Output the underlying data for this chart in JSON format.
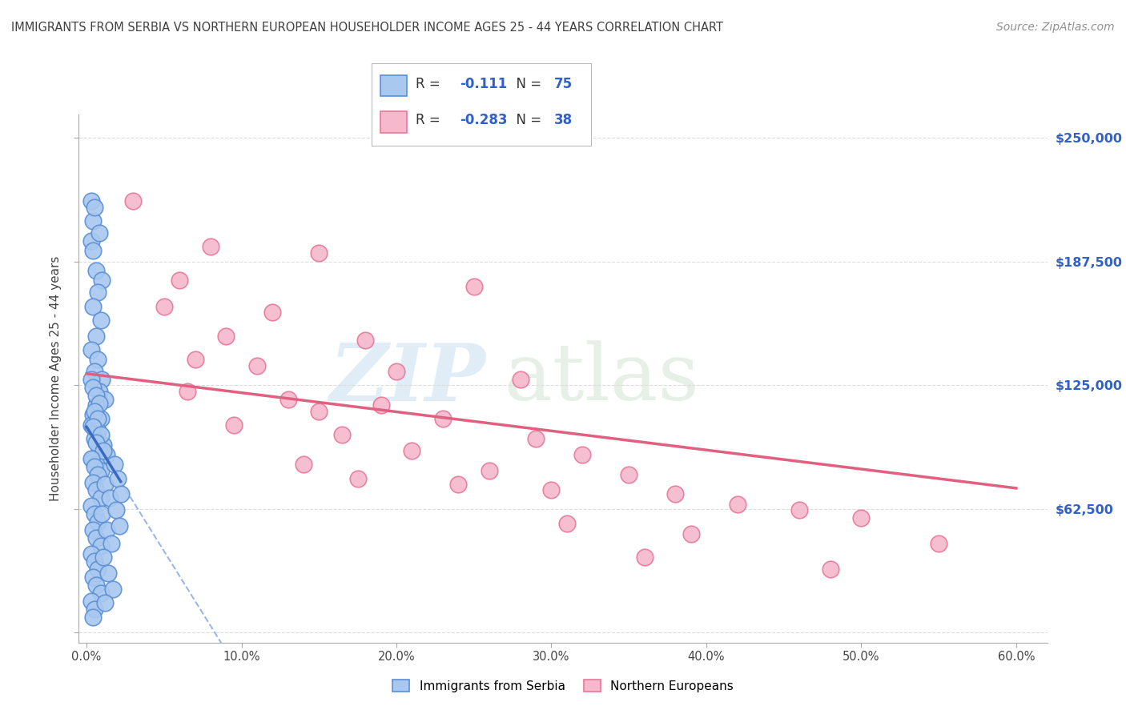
{
  "title": "IMMIGRANTS FROM SERBIA VS NORTHERN EUROPEAN HOUSEHOLDER INCOME AGES 25 - 44 YEARS CORRELATION CHART",
  "source": "Source: ZipAtlas.com",
  "ylabel": "Householder Income Ages 25 - 44 years",
  "serbia_R": -0.111,
  "serbia_N": 75,
  "northern_R": -0.283,
  "northern_N": 38,
  "serbia_color": "#a8c8f0",
  "northern_color": "#f5b8cc",
  "serbia_edge_color": "#5b8fd4",
  "northern_edge_color": "#e87898",
  "serbia_line_color": "#3a6abf",
  "northern_line_color": "#e06080",
  "dashed_line_color": "#99b8e8",
  "title_color": "#404040",
  "source_color": "#909090",
  "label_color": "#3060c8",
  "y_ticks": [
    0,
    62500,
    125000,
    187500,
    250000
  ],
  "y_tick_labels": [
    "",
    "$62,500",
    "$125,000",
    "$187,500",
    "$250,000"
  ],
  "x_ticks": [
    0.0,
    0.1,
    0.2,
    0.3,
    0.4,
    0.5,
    0.6
  ],
  "x_tick_labels": [
    "0.0%",
    "10.0%",
    "20.0%",
    "30.0%",
    "40.0%",
    "50.0%",
    "60.0%"
  ],
  "xlim": [
    -0.005,
    0.62
  ],
  "ylim": [
    -5000,
    262000
  ],
  "serbia_points": [
    [
      0.003,
      218000
    ],
    [
      0.004,
      208000
    ],
    [
      0.003,
      198000
    ],
    [
      0.005,
      215000
    ],
    [
      0.008,
      202000
    ],
    [
      0.004,
      193000
    ],
    [
      0.006,
      183000
    ],
    [
      0.01,
      178000
    ],
    [
      0.007,
      172000
    ],
    [
      0.004,
      165000
    ],
    [
      0.009,
      158000
    ],
    [
      0.006,
      150000
    ],
    [
      0.003,
      143000
    ],
    [
      0.007,
      138000
    ],
    [
      0.005,
      132000
    ],
    [
      0.01,
      128000
    ],
    [
      0.008,
      122000
    ],
    [
      0.012,
      118000
    ],
    [
      0.006,
      115000
    ],
    [
      0.004,
      110000
    ],
    [
      0.009,
      108000
    ],
    [
      0.003,
      105000
    ],
    [
      0.007,
      102000
    ],
    [
      0.005,
      98000
    ],
    [
      0.011,
      95000
    ],
    [
      0.008,
      92000
    ],
    [
      0.013,
      90000
    ],
    [
      0.004,
      88000
    ],
    [
      0.006,
      85000
    ],
    [
      0.009,
      82000
    ],
    [
      0.003,
      128000
    ],
    [
      0.004,
      124000
    ],
    [
      0.006,
      120000
    ],
    [
      0.008,
      116000
    ],
    [
      0.005,
      112000
    ],
    [
      0.007,
      108000
    ],
    [
      0.004,
      104000
    ],
    [
      0.009,
      100000
    ],
    [
      0.006,
      96000
    ],
    [
      0.011,
      92000
    ],
    [
      0.003,
      88000
    ],
    [
      0.005,
      84000
    ],
    [
      0.007,
      80000
    ],
    [
      0.004,
      76000
    ],
    [
      0.006,
      72000
    ],
    [
      0.009,
      68000
    ],
    [
      0.003,
      64000
    ],
    [
      0.005,
      60000
    ],
    [
      0.007,
      56000
    ],
    [
      0.004,
      52000
    ],
    [
      0.006,
      48000
    ],
    [
      0.009,
      44000
    ],
    [
      0.003,
      40000
    ],
    [
      0.005,
      36000
    ],
    [
      0.007,
      32000
    ],
    [
      0.004,
      28000
    ],
    [
      0.006,
      24000
    ],
    [
      0.009,
      20000
    ],
    [
      0.003,
      16000
    ],
    [
      0.005,
      12000
    ],
    [
      0.004,
      8000
    ],
    [
      0.012,
      75000
    ],
    [
      0.015,
      68000
    ],
    [
      0.01,
      60000
    ],
    [
      0.013,
      52000
    ],
    [
      0.016,
      45000
    ],
    [
      0.011,
      38000
    ],
    [
      0.014,
      30000
    ],
    [
      0.017,
      22000
    ],
    [
      0.012,
      15000
    ],
    [
      0.018,
      85000
    ],
    [
      0.02,
      78000
    ],
    [
      0.022,
      70000
    ],
    [
      0.019,
      62000
    ],
    [
      0.021,
      54000
    ]
  ],
  "northern_points": [
    [
      0.03,
      218000
    ],
    [
      0.08,
      195000
    ],
    [
      0.15,
      192000
    ],
    [
      0.06,
      178000
    ],
    [
      0.25,
      175000
    ],
    [
      0.05,
      165000
    ],
    [
      0.12,
      162000
    ],
    [
      0.09,
      150000
    ],
    [
      0.18,
      148000
    ],
    [
      0.07,
      138000
    ],
    [
      0.11,
      135000
    ],
    [
      0.2,
      132000
    ],
    [
      0.28,
      128000
    ],
    [
      0.065,
      122000
    ],
    [
      0.13,
      118000
    ],
    [
      0.19,
      115000
    ],
    [
      0.15,
      112000
    ],
    [
      0.23,
      108000
    ],
    [
      0.095,
      105000
    ],
    [
      0.165,
      100000
    ],
    [
      0.29,
      98000
    ],
    [
      0.21,
      92000
    ],
    [
      0.32,
      90000
    ],
    [
      0.14,
      85000
    ],
    [
      0.26,
      82000
    ],
    [
      0.35,
      80000
    ],
    [
      0.175,
      78000
    ],
    [
      0.24,
      75000
    ],
    [
      0.3,
      72000
    ],
    [
      0.38,
      70000
    ],
    [
      0.42,
      65000
    ],
    [
      0.46,
      62000
    ],
    [
      0.5,
      58000
    ],
    [
      0.31,
      55000
    ],
    [
      0.39,
      50000
    ],
    [
      0.55,
      45000
    ],
    [
      0.36,
      38000
    ],
    [
      0.48,
      32000
    ]
  ],
  "background_color": "#ffffff",
  "grid_color": "#dddddd"
}
